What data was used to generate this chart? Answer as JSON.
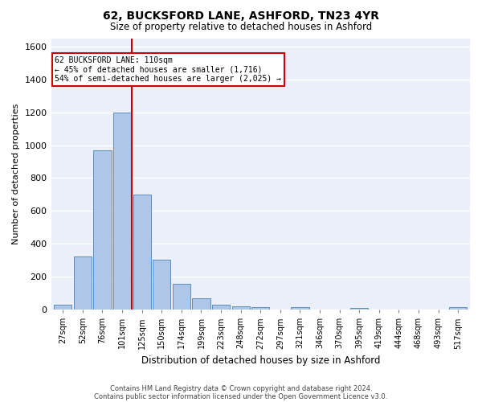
{
  "title": "62, BUCKSFORD LANE, ASHFORD, TN23 4YR",
  "subtitle": "Size of property relative to detached houses in Ashford",
  "xlabel": "Distribution of detached houses by size in Ashford",
  "ylabel": "Number of detached properties",
  "bar_labels": [
    "27sqm",
    "52sqm",
    "76sqm",
    "101sqm",
    "125sqm",
    "150sqm",
    "174sqm",
    "199sqm",
    "223sqm",
    "248sqm",
    "272sqm",
    "297sqm",
    "321sqm",
    "346sqm",
    "370sqm",
    "395sqm",
    "419sqm",
    "444sqm",
    "468sqm",
    "493sqm",
    "517sqm"
  ],
  "bar_values": [
    30,
    325,
    970,
    1200,
    700,
    305,
    155,
    70,
    30,
    20,
    15,
    0,
    15,
    0,
    0,
    10,
    0,
    0,
    0,
    0,
    15
  ],
  "bar_color": "#aec6e8",
  "bar_edge_color": "#5a8fc2",
  "property_line_x": 3.5,
  "annotation_text": "62 BUCKSFORD LANE: 110sqm\n← 45% of detached houses are smaller (1,716)\n54% of semi-detached houses are larger (2,025) →",
  "annotation_box_color": "#ffffff",
  "annotation_box_edge": "#cc0000",
  "vline_color": "#cc0000",
  "ylim": [
    0,
    1650
  ],
  "background_color": "#eaeff9",
  "grid_color": "#ffffff",
  "footer_line1": "Contains HM Land Registry data © Crown copyright and database right 2024.",
  "footer_line2": "Contains public sector information licensed under the Open Government Licence v3.0."
}
